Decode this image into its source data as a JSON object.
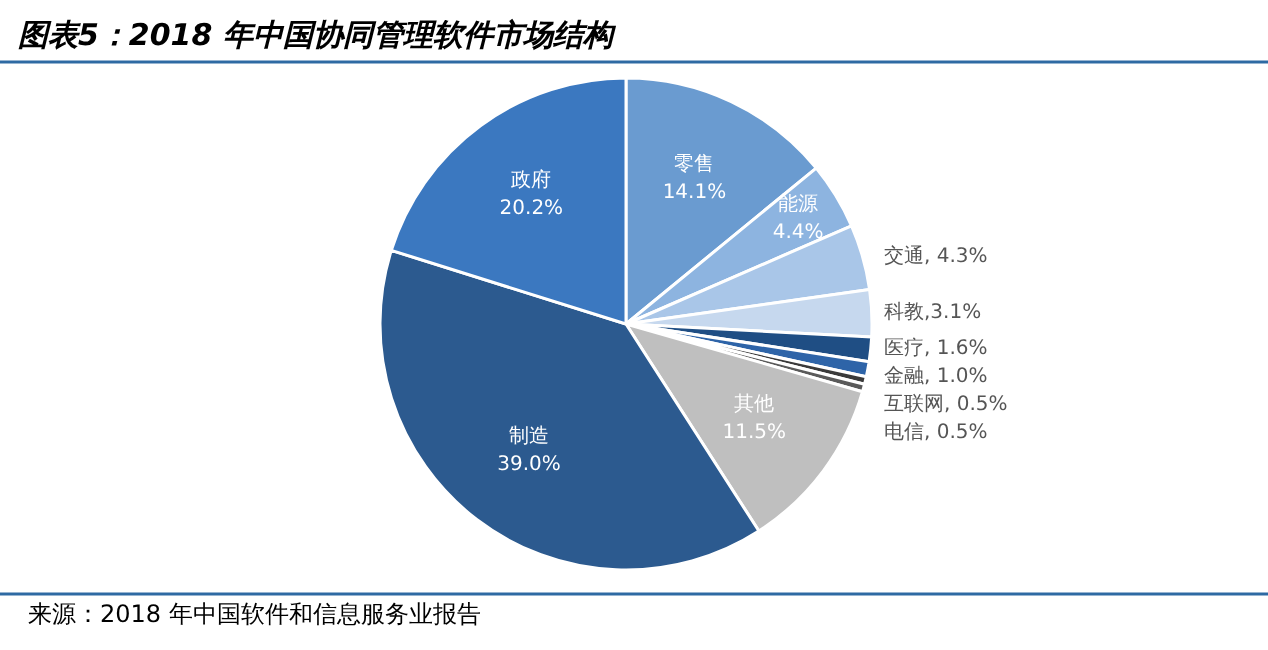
{
  "chart_data": {
    "type": "pie",
    "title": "图表5：2018 年中国协同管理软件市场结构",
    "categories": [
      "零售",
      "能源",
      "交通",
      "科教",
      "医疗",
      "金融",
      "互联网",
      "电信",
      "其他",
      "制造",
      "政府"
    ],
    "values": [
      14.1,
      4.4,
      4.3,
      3.1,
      1.6,
      1.0,
      0.5,
      0.5,
      11.5,
      39.0,
      20.2
    ],
    "colors": [
      "#6a9bd0",
      "#8db4e0",
      "#a9c6e8",
      "#c6d8ee",
      "#1f4e84",
      "#2e64a8",
      "#3a3a3a",
      "#5a5a5a",
      "#bfbfbf",
      "#2c5a8f",
      "#3b78c0"
    ],
    "value_labels": [
      "14.1%",
      "4.4%",
      ", 4.3%",
      ",3.1%",
      ", 1.6%",
      ", 1.0%",
      ", 0.5%",
      ", 0.5%",
      "11.5%",
      "39.0%",
      "20.2%"
    ],
    "legend": false,
    "annotations": [
      "来源：2018 年中国软件和信息服务业报告"
    ]
  }
}
